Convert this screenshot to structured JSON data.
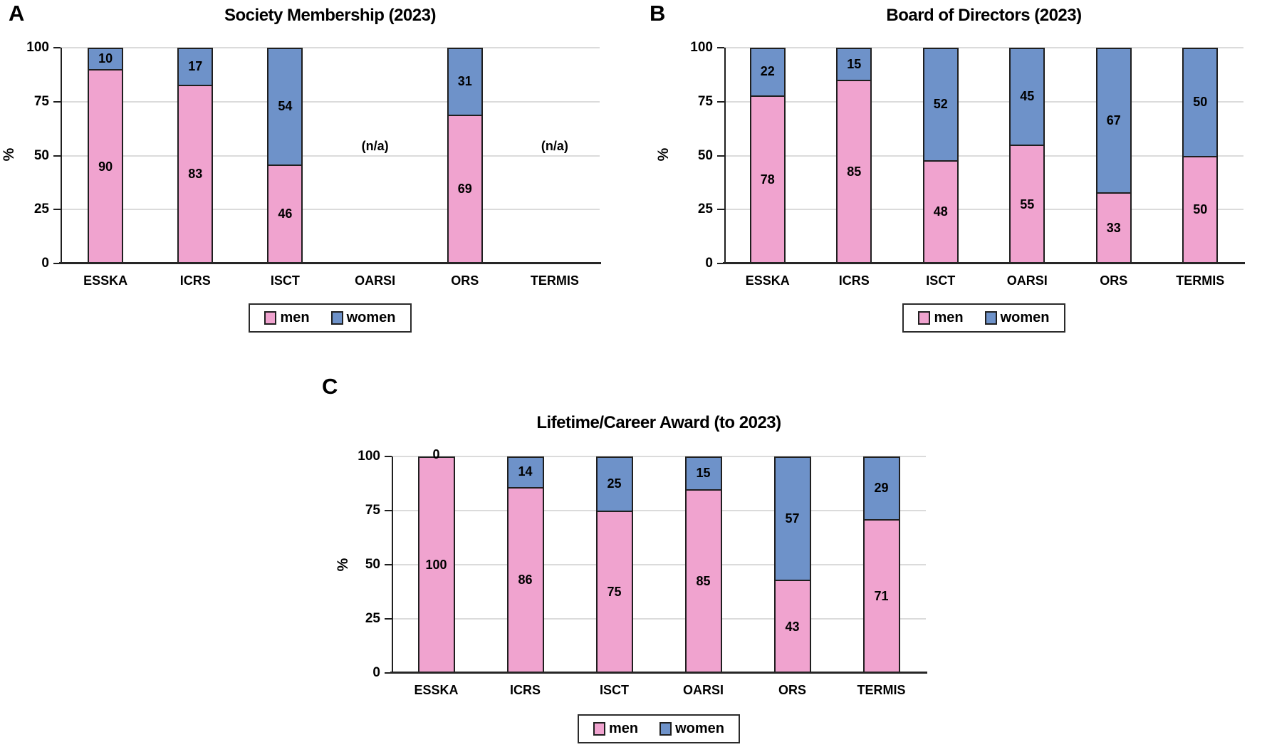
{
  "figure": {
    "background": "#FFFFFF",
    "legend": {
      "men": "men",
      "women": "women"
    },
    "colors": {
      "men": "#F0A3CF",
      "women": "#6E92C9",
      "grid": "#DBDBDB",
      "axis": "#1F1F1F"
    }
  },
  "chart_data": [
    {
      "type": "bar",
      "stacked": true,
      "panel_label": "A",
      "title": "Society Membership (2023)",
      "ylabel": "%",
      "ylim": [
        0,
        100
      ],
      "yticks": [
        0,
        25,
        50,
        75,
        100
      ],
      "grid": true,
      "legend_position": "bottom",
      "na_label": "(n/a)",
      "categories": [
        "ESSKA",
        "ICRS",
        "ISCT",
        "OARSI",
        "ORS",
        "TERMIS"
      ],
      "series": [
        {
          "name": "men",
          "color": "#F0A3CF",
          "values": [
            90,
            83,
            46,
            null,
            69,
            null
          ]
        },
        {
          "name": "women",
          "color": "#6E92C9",
          "values": [
            10,
            17,
            54,
            null,
            31,
            null
          ]
        }
      ]
    },
    {
      "type": "bar",
      "stacked": true,
      "panel_label": "B",
      "title": "Board of Directors (2023)",
      "ylabel": "%",
      "ylim": [
        0,
        100
      ],
      "yticks": [
        0,
        25,
        50,
        75,
        100
      ],
      "grid": true,
      "legend_position": "bottom",
      "na_label": "(n/a)",
      "categories": [
        "ESSKA",
        "ICRS",
        "ISCT",
        "OARSI",
        "ORS",
        "TERMIS"
      ],
      "series": [
        {
          "name": "men",
          "color": "#F0A3CF",
          "values": [
            78,
            85,
            48,
            55,
            33,
            50
          ]
        },
        {
          "name": "women",
          "color": "#6E92C9",
          "values": [
            22,
            15,
            52,
            45,
            67,
            50
          ]
        }
      ]
    },
    {
      "type": "bar",
      "stacked": true,
      "panel_label": "C",
      "title": "Lifetime/Career Award (to 2023)",
      "ylabel": "%",
      "ylim": [
        0,
        100
      ],
      "yticks": [
        0,
        25,
        50,
        75,
        100
      ],
      "grid": true,
      "legend_position": "bottom",
      "na_label": "(n/a)",
      "categories": [
        "ESSKA",
        "ICRS",
        "ISCT",
        "OARSI",
        "ORS",
        "TERMIS"
      ],
      "series": [
        {
          "name": "men",
          "color": "#F0A3CF",
          "values": [
            100,
            86,
            75,
            85,
            43,
            71
          ]
        },
        {
          "name": "women",
          "color": "#6E92C9",
          "values": [
            0,
            14,
            25,
            15,
            57,
            29
          ]
        }
      ]
    }
  ]
}
